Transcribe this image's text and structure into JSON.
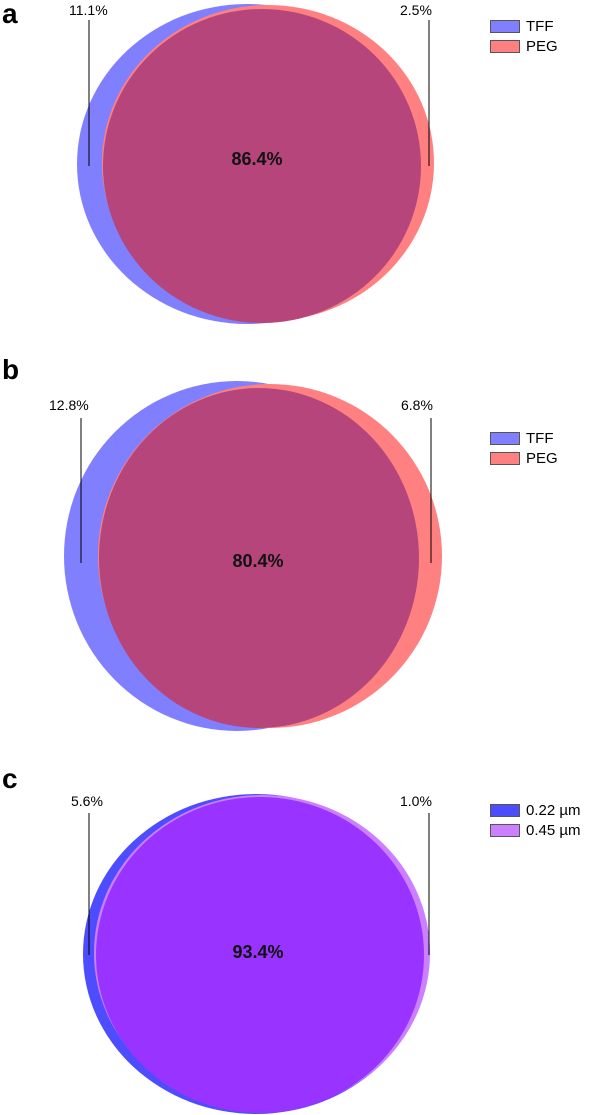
{
  "chart_data": [
    {
      "type": "venn",
      "panel": "a",
      "sets": [
        {
          "name": "TFF",
          "color": "#8080ff"
        },
        {
          "name": "PEG",
          "color": "#ff8080"
        }
      ],
      "regions": {
        "only_first": "11.1%",
        "overlap": "86.4%",
        "only_second": "2.5%"
      },
      "values": {
        "only_first": 11.1,
        "overlap": 86.4,
        "only_second": 2.5
      },
      "overlap_color": "#b5457a",
      "legend_position": "top-right"
    },
    {
      "type": "venn",
      "panel": "b",
      "sets": [
        {
          "name": "TFF",
          "color": "#8080ff"
        },
        {
          "name": "PEG",
          "color": "#ff8080"
        }
      ],
      "regions": {
        "only_first": "12.8%",
        "overlap": "80.4%",
        "only_second": "6.8%"
      },
      "values": {
        "only_first": 12.8,
        "overlap": 80.4,
        "only_second": 6.8
      },
      "overlap_color": "#b5457a",
      "legend_position": "top-right"
    },
    {
      "type": "venn",
      "panel": "c",
      "sets": [
        {
          "name": "0.22 µm",
          "color": "#4d4dff"
        },
        {
          "name": "0.45 µm",
          "color": "#cc7fff"
        }
      ],
      "regions": {
        "only_first": "5.6%",
        "overlap": "93.4%",
        "only_second": "1.0%"
      },
      "values": {
        "only_first": 5.6,
        "overlap": 93.4,
        "only_second": 1.0
      },
      "overlap_color": "#9933ff",
      "legend_position": "top-right"
    }
  ]
}
